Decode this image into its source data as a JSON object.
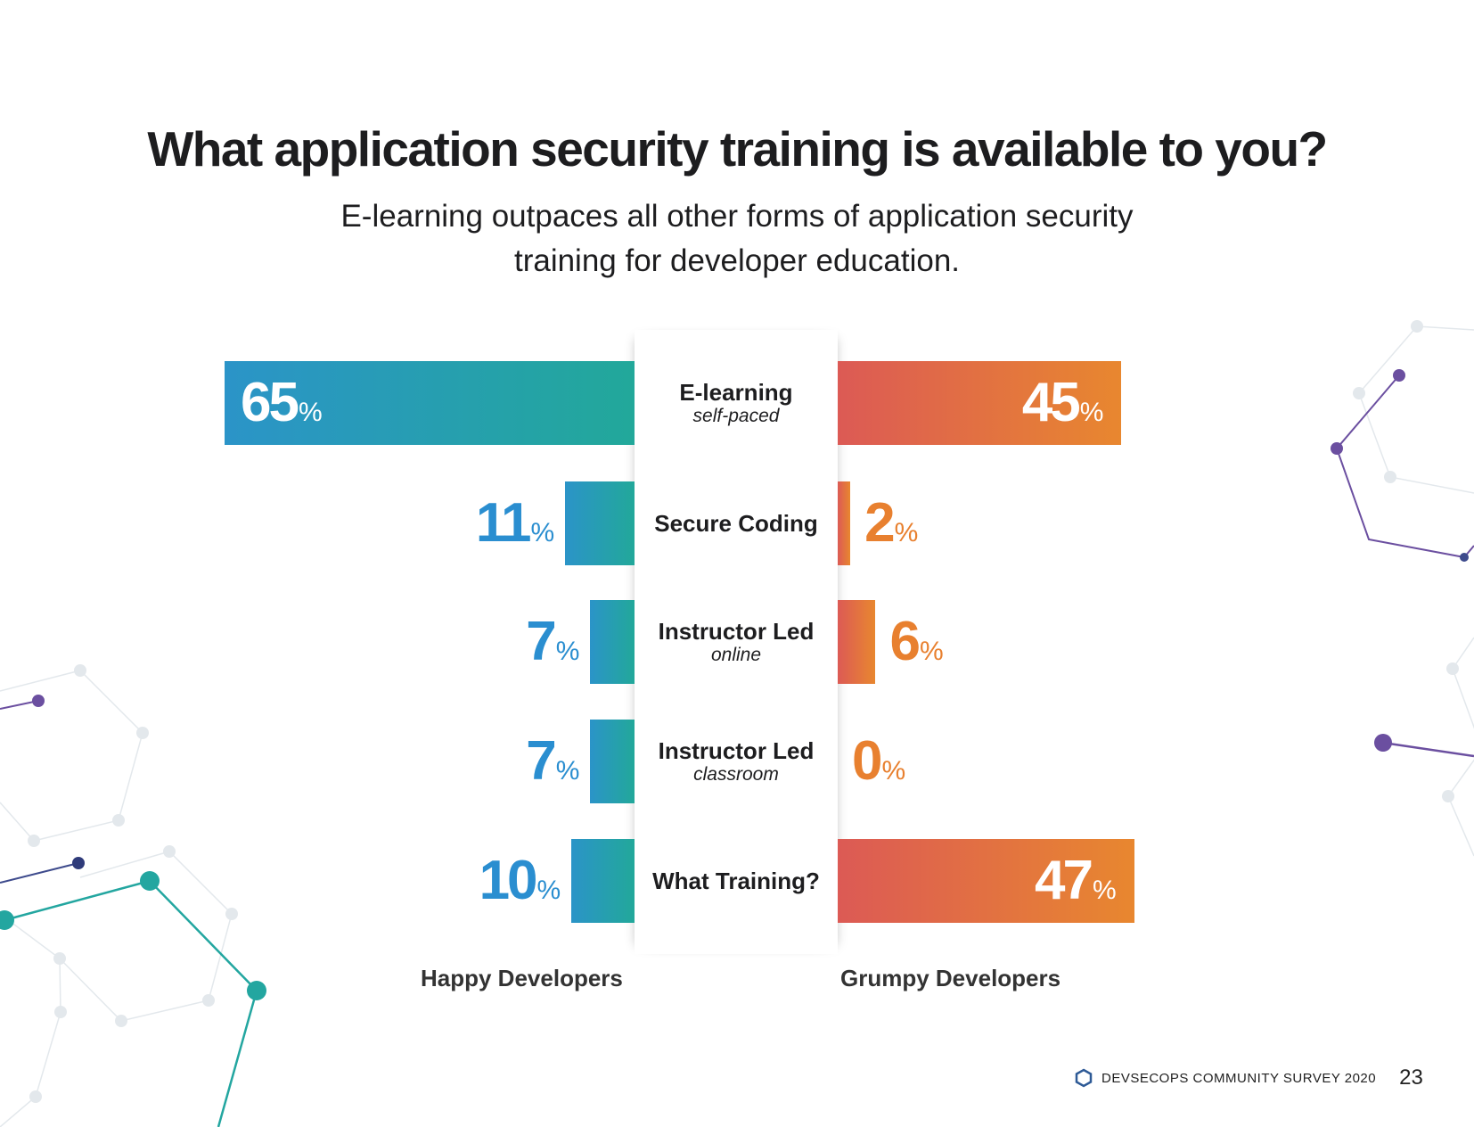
{
  "title": "What application security training is available to you?",
  "subtitle": "E-learning outpaces all other forms of application security training for developer education.",
  "chart_data": {
    "type": "bar",
    "orientation": "horizontal-diverging",
    "categories": [
      {
        "label": "E-learning",
        "sublabel": "self-paced"
      },
      {
        "label": "Secure Coding",
        "sublabel": ""
      },
      {
        "label": "Instructor Led",
        "sublabel": "online"
      },
      {
        "label": "Instructor Led",
        "sublabel": "classroom"
      },
      {
        "label": "What Training?",
        "sublabel": ""
      }
    ],
    "series": [
      {
        "name": "Happy Developers",
        "side": "left",
        "values": [
          65,
          11,
          7,
          7,
          10
        ],
        "color_start": "#2b94c8",
        "color_end": "#22a89a"
      },
      {
        "name": "Grumpy Developers",
        "side": "right",
        "values": [
          45,
          2,
          6,
          0,
          47
        ],
        "color_start": "#dc5a55",
        "color_end": "#e8872f"
      }
    ],
    "unit": "%",
    "xlim": [
      0,
      65
    ],
    "grid": false,
    "legend": "bottom"
  },
  "footer": {
    "text": "DEVSECOPS COMMUNITY SURVEY 2020",
    "page_number": "23",
    "icon": "hexagon-icon"
  }
}
